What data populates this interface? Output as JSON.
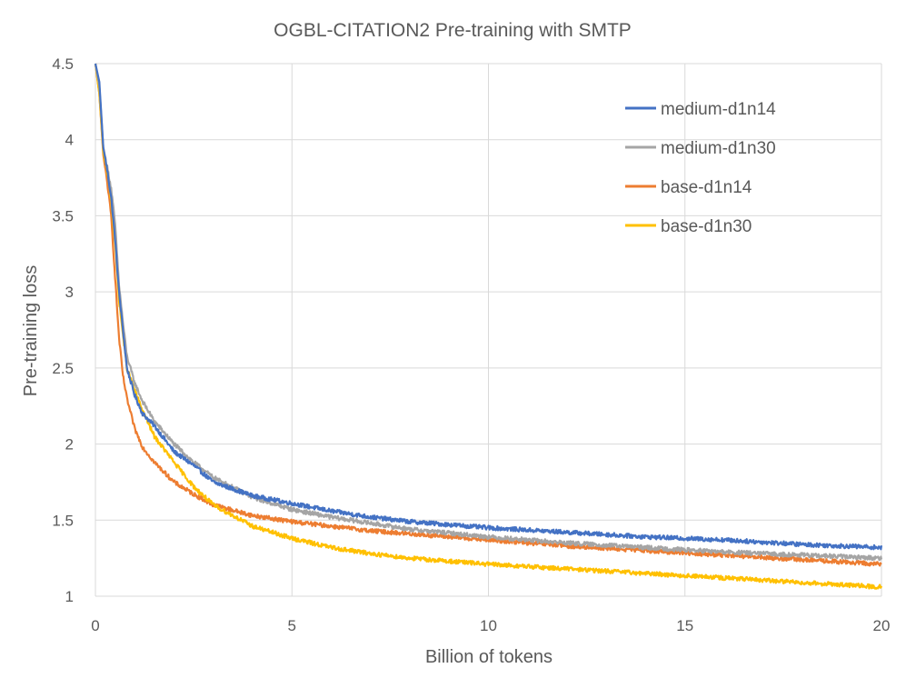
{
  "chart_data": {
    "type": "line",
    "title": "OGBL-CITATION2 Pre-training with SMTP",
    "xlabel": "Billion of tokens",
    "ylabel": "Pre-training loss",
    "xlim": [
      0,
      20
    ],
    "ylim": [
      1,
      4.5
    ],
    "xticks": [
      0,
      5,
      10,
      15,
      20
    ],
    "yticks": [
      1,
      1.5,
      2,
      2.5,
      3,
      3.5,
      4,
      4.5
    ],
    "xtick_labels": [
      "0",
      "5",
      "10",
      "15",
      "20"
    ],
    "ytick_labels": [
      "1",
      "1.5",
      "2",
      "2.5",
      "3",
      "3.5",
      "4",
      "4.5"
    ],
    "grid": true,
    "legend_position": "top-right",
    "series": [
      {
        "name": "medium-d1n14",
        "color": "#4472C4",
        "x": [
          0,
          0.1,
          0.2,
          0.3,
          0.4,
          0.5,
          0.6,
          0.7,
          0.8,
          1.0,
          1.2,
          1.5,
          2.0,
          2.5,
          3.0,
          4.0,
          5.0,
          6.0,
          7.0,
          8.0,
          10.0,
          12.0,
          14.0,
          16.0,
          18.0,
          20.0
        ],
        "values": [
          4.5,
          4.38,
          3.95,
          3.8,
          3.62,
          3.35,
          3.0,
          2.75,
          2.5,
          2.32,
          2.2,
          2.12,
          1.95,
          1.86,
          1.75,
          1.66,
          1.61,
          1.56,
          1.52,
          1.49,
          1.45,
          1.42,
          1.39,
          1.37,
          1.34,
          1.32
        ]
      },
      {
        "name": "medium-d1n30",
        "color": "#A5A5A5",
        "x": [
          0,
          0.1,
          0.2,
          0.3,
          0.4,
          0.5,
          0.6,
          0.7,
          0.8,
          1.0,
          1.2,
          1.5,
          2.0,
          2.5,
          3.0,
          4.0,
          5.0,
          6.0,
          7.0,
          8.0,
          10.0,
          12.0,
          14.0,
          16.0,
          18.0,
          20.0
        ],
        "values": [
          4.5,
          4.35,
          3.95,
          3.82,
          3.68,
          3.45,
          3.05,
          2.8,
          2.58,
          2.4,
          2.28,
          2.15,
          2.0,
          1.88,
          1.78,
          1.65,
          1.57,
          1.52,
          1.48,
          1.44,
          1.39,
          1.35,
          1.32,
          1.29,
          1.27,
          1.25
        ]
      },
      {
        "name": "base-d1n14",
        "color": "#ED7D31",
        "x": [
          0,
          0.1,
          0.2,
          0.3,
          0.4,
          0.5,
          0.6,
          0.7,
          0.8,
          1.0,
          1.2,
          1.5,
          2.0,
          2.5,
          3.0,
          4.0,
          5.0,
          6.0,
          7.0,
          8.0,
          10.0,
          12.0,
          14.0,
          16.0,
          18.0,
          20.0
        ],
        "values": [
          4.5,
          4.3,
          3.9,
          3.72,
          3.5,
          3.1,
          2.7,
          2.45,
          2.3,
          2.1,
          1.98,
          1.88,
          1.75,
          1.67,
          1.6,
          1.53,
          1.49,
          1.46,
          1.43,
          1.41,
          1.37,
          1.33,
          1.3,
          1.27,
          1.24,
          1.21
        ]
      },
      {
        "name": "base-d1n30",
        "color": "#FFC000",
        "x": [
          0,
          0.1,
          0.2,
          0.3,
          0.4,
          0.5,
          0.6,
          0.7,
          0.8,
          1.0,
          1.2,
          1.5,
          2.0,
          2.5,
          3.0,
          4.0,
          5.0,
          6.0,
          7.0,
          8.0,
          10.0,
          12.0,
          14.0,
          16.0,
          18.0,
          20.0
        ],
        "values": [
          4.5,
          4.3,
          3.92,
          3.78,
          3.6,
          3.32,
          2.95,
          2.72,
          2.5,
          2.35,
          2.22,
          2.05,
          1.88,
          1.72,
          1.6,
          1.46,
          1.38,
          1.32,
          1.28,
          1.25,
          1.21,
          1.18,
          1.15,
          1.12,
          1.09,
          1.06
        ]
      }
    ]
  }
}
